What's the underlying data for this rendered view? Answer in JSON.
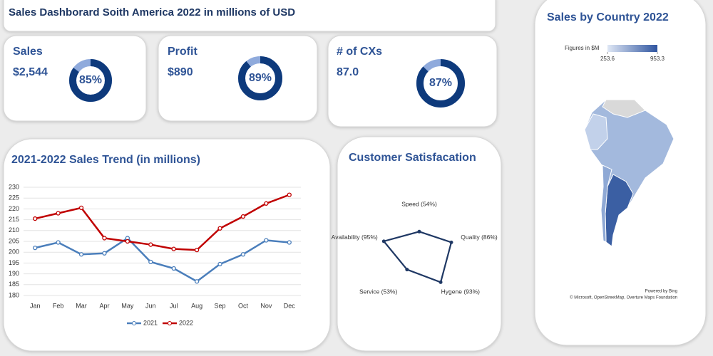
{
  "title": "Sales Dashborard Soith America 2022 in millions of USD",
  "kpis": [
    {
      "label": "Sales",
      "value": "$2,544",
      "percent": 85,
      "percent_label": "85%"
    },
    {
      "label": "Profit",
      "value": "$890",
      "percent": 89,
      "percent_label": "89%"
    },
    {
      "label": "# of CXs",
      "value": "87.0",
      "percent": 87,
      "percent_label": "87%"
    }
  ],
  "chart_data": [
    {
      "type": "line",
      "title": "2021-2022 Sales Trend (in millions)",
      "categories": [
        "Jan",
        "Feb",
        "Mar",
        "Apr",
        "May",
        "Jun",
        "Jul",
        "Aug",
        "Sep",
        "Oct",
        "Nov",
        "Dec"
      ],
      "series": [
        {
          "name": "2021",
          "color": "#4a7ebb",
          "values": [
            202,
            204.5,
            199,
            199.5,
            206.5,
            195.5,
            192.5,
            186.5,
            194.5,
            199,
            205.5,
            204.5
          ]
        },
        {
          "name": "2022",
          "color": "#c00000",
          "values": [
            215.5,
            218,
            220.5,
            206.5,
            205,
            203.5,
            201.5,
            201,
            211,
            216.5,
            222.5,
            226.5
          ]
        }
      ],
      "ylim": [
        180,
        230
      ],
      "yticks": [
        180,
        185,
        190,
        195,
        200,
        205,
        210,
        215,
        220,
        225,
        230
      ],
      "grid": true,
      "legend": "bottom"
    },
    {
      "type": "radar",
      "title": "Customer Satisfacation",
      "categories": [
        "Speed (54%)",
        "Quality (86%)",
        "Hygene (93%)",
        "Service (53%)",
        "Availability (95%)"
      ],
      "values": [
        54,
        86,
        93,
        53,
        95
      ],
      "rlim": [
        0,
        100
      ],
      "color": "#1f3864"
    },
    {
      "type": "map",
      "title": "Sales by Country 2022",
      "legend_title": "Figures in $M",
      "colorbar": {
        "range": [
          253.6,
          953.3
        ],
        "ticks": [
          253.6,
          953.3
        ],
        "colors": [
          "#dfe7f5",
          "#2f55a0"
        ]
      },
      "credit": "Powered by Bing",
      "attribution": "© Microsoft, OpenStreetMap, Overture Maps Foundation"
    }
  ]
}
